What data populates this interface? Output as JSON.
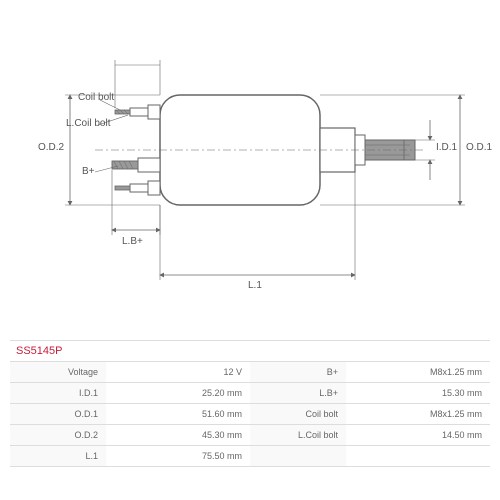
{
  "part_number": "SS5145P",
  "diagram": {
    "labels": {
      "od2": "O.D.2",
      "od1": "O.D.1",
      "id1": "I.D.1",
      "coil_bolt": "Coil bolt",
      "l_coil_bolt": "L.Coil bolt",
      "b_plus": "B+",
      "lb_plus": "L.B+",
      "l1": "L.1"
    },
    "colors": {
      "stroke": "#666666",
      "fill_dark": "#9a9a9a",
      "fill_light": "#ffffff",
      "background": "#ffffff"
    }
  },
  "specs": {
    "left": [
      {
        "label": "Voltage",
        "value": "12 V"
      },
      {
        "label": "I.D.1",
        "value": "25.20 mm"
      },
      {
        "label": "O.D.1",
        "value": "51.60 mm"
      },
      {
        "label": "O.D.2",
        "value": "45.30 mm"
      },
      {
        "label": "L.1",
        "value": "75.50 mm"
      }
    ],
    "right": [
      {
        "label": "B+",
        "value": "M8x1.25 mm"
      },
      {
        "label": "L.B+",
        "value": "15.30 mm"
      },
      {
        "label": "Coil bolt",
        "value": "M8x1.25 mm"
      },
      {
        "label": "L.Coil bolt",
        "value": "14.50 mm"
      },
      {
        "label": "",
        "value": ""
      }
    ]
  }
}
